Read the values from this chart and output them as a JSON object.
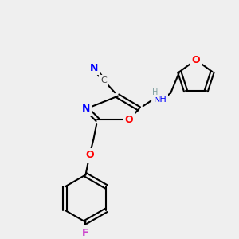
{
  "bg_color": "#efefef",
  "bond_color": "#000000",
  "bond_width": 1.5,
  "atom_colors": {
    "N": "#0000ff",
    "O": "#ff0000",
    "F": "#ff00ff",
    "C": "#555555",
    "H": "#7f9f9f"
  },
  "font_size_atom": 9,
  "font_size_small": 7
}
